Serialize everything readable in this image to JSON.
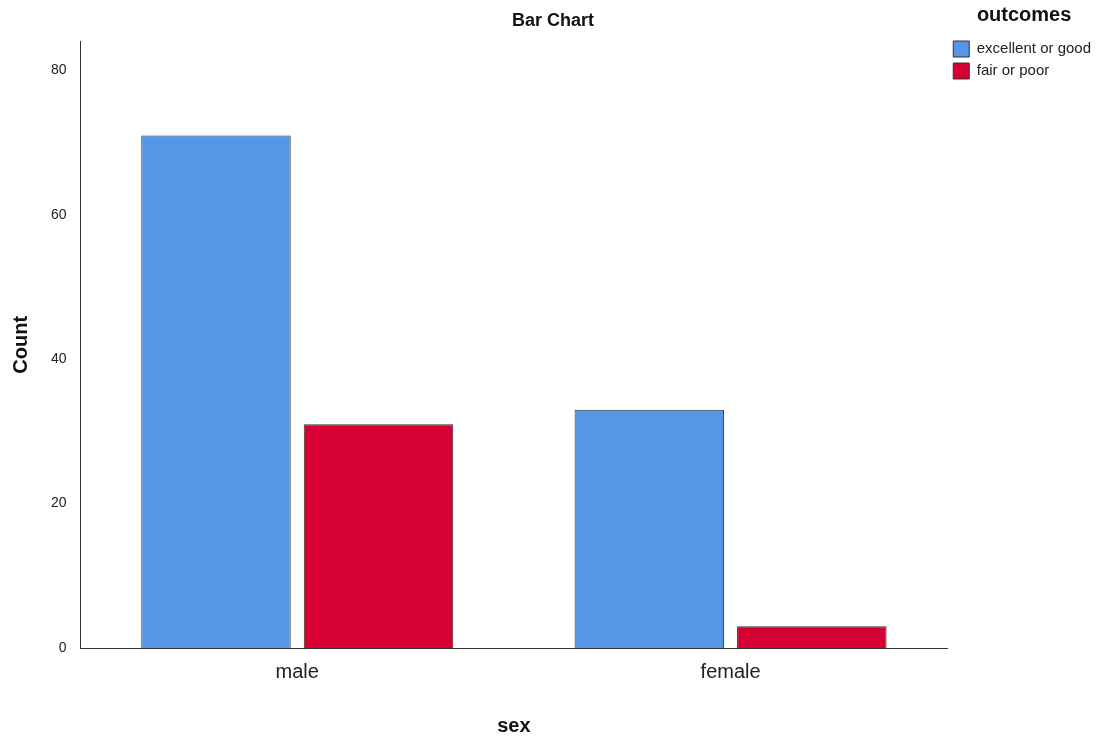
{
  "chart_data": {
    "type": "bar",
    "title": "Bar Chart",
    "xlabel": "sex",
    "ylabel": "Count",
    "legend_title": "outcomes",
    "categories": [
      "male",
      "female"
    ],
    "series": [
      {
        "name": "excellent or good",
        "color": "#5596e6",
        "values": [
          71,
          33
        ]
      },
      {
        "name": "fair or poor",
        "color": "#d60032",
        "values": [
          31,
          3
        ]
      }
    ],
    "ylim": [
      0,
      84
    ],
    "yticks": [
      0,
      20,
      40,
      60,
      80
    ],
    "grid": false,
    "legend": "top right"
  }
}
